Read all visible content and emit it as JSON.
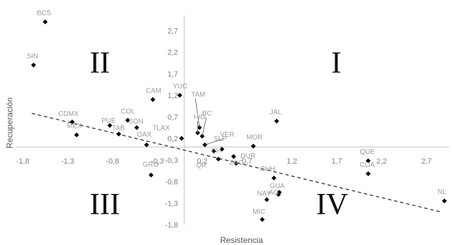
{
  "chart_data": {
    "type": "scatter",
    "title": "",
    "xlabel": "Resistencia",
    "ylabel": "Recuperación",
    "xlim": [
      -1.8,
      2.95
    ],
    "ylim": [
      -1.8,
      3.05
    ],
    "x_ticks": [
      "-1,8",
      "-1,3",
      "-0,8",
      "-0,3",
      "0,2",
      "0,7",
      "1,2",
      "1,7",
      "2,2",
      "2,7"
    ],
    "y_ticks": [
      "2,7",
      "2,2",
      "1,7",
      "1,2",
      "0,7",
      "0,2",
      "-0,3",
      "-0,8",
      "-1,3",
      "-1,8"
    ],
    "quadrant_labels": [
      "I",
      "II",
      "III",
      "IV"
    ],
    "trendline": {
      "x": [
        -1.7,
        2.85
      ],
      "y": [
        0.78,
        -1.5
      ]
    },
    "points": [
      {
        "label": "BCS",
        "x": -1.55,
        "y": 2.9
      },
      {
        "label": "SIN",
        "x": -1.68,
        "y": 1.9
      },
      {
        "label": "CAM",
        "x": -0.35,
        "y": 1.1
      },
      {
        "label": "YUC",
        "x": -0.05,
        "y": 1.2
      },
      {
        "label": "TAM",
        "x": 0.17,
        "y": 0.45
      },
      {
        "label": "HID",
        "x": 0.15,
        "y": 0.33
      },
      {
        "label": "BC",
        "x": 0.2,
        "y": 0.25
      },
      {
        "label": "TLAX",
        "x": -0.03,
        "y": 0.2
      },
      {
        "label": "VER",
        "x": 0.23,
        "y": 0.05
      },
      {
        "label": "CDMX",
        "x": -1.25,
        "y": 0.58
      },
      {
        "label": "MEX",
        "x": -1.2,
        "y": 0.28
      },
      {
        "label": "COL",
        "x": -0.63,
        "y": 0.62
      },
      {
        "label": "PUE",
        "x": -0.83,
        "y": 0.5
      },
      {
        "label": "TAB",
        "x": -0.73,
        "y": 0.3
      },
      {
        "label": "SON",
        "x": -0.53,
        "y": 0.45
      },
      {
        "label": "OAX",
        "x": -0.42,
        "y": 0.05
      },
      {
        "label": "GRO",
        "x": -0.37,
        "y": -0.65
      },
      {
        "label": "SLP",
        "x": 0.42,
        "y": -0.05
      },
      {
        "label": "CH",
        "x": 0.33,
        "y": -0.1
      },
      {
        "label": "QR",
        "x": 0.38,
        "y": -0.28
      },
      {
        "label": "DUR",
        "x": 0.55,
        "y": -0.22
      },
      {
        "label": "ZAC",
        "x": 0.58,
        "y": -0.38
      },
      {
        "label": "MOR",
        "x": 0.77,
        "y": 0.02
      },
      {
        "label": "JAL",
        "x": 1.03,
        "y": 0.6
      },
      {
        "label": "CHH",
        "x": 1.0,
        "y": -0.72
      },
      {
        "label": "GUA",
        "x": 1.06,
        "y": -1.05
      },
      {
        "label": "AG",
        "x": 1.05,
        "y": -1.1
      },
      {
        "label": "NAY",
        "x": 0.92,
        "y": -1.22
      },
      {
        "label": "MIC",
        "x": 0.87,
        "y": -1.68
      },
      {
        "label": "QUE",
        "x": 2.05,
        "y": -0.32
      },
      {
        "label": "COA",
        "x": 2.05,
        "y": -0.62
      },
      {
        "label": "NL",
        "x": 2.9,
        "y": -1.25
      }
    ]
  }
}
